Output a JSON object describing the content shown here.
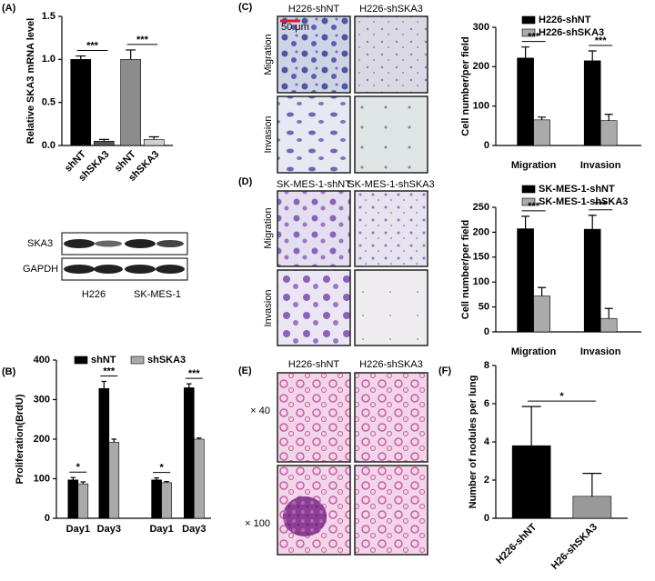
{
  "panel_labels": [
    "(A)",
    "(B)",
    "(C)",
    "(D)",
    "(E)",
    "(F)"
  ],
  "chart_data": [
    {
      "type": "bar",
      "ylabel": "Relative SKA3 mRNA level",
      "categories": [
        "shNT",
        "shSKA3",
        "shNT",
        "shSKA3"
      ],
      "values": [
        1.0,
        0.05,
        1.0,
        0.07
      ],
      "errors": [
        0.04,
        0.02,
        0.11,
        0.03
      ],
      "colors": [
        "#000000",
        "#555555",
        "#8c8c8c",
        "#d0d0d0"
      ],
      "ylim": [
        0,
        1.5
      ],
      "yticks": [
        {
          "value": 0,
          "label": "0.0"
        },
        0.5,
        {
          "value": 1,
          "label": "1.0"
        },
        1.5
      ],
      "annotations": [
        "***",
        "***"
      ]
    },
    {
      "type": "grouped-bar",
      "ylabel": "Proliferation(BrdU)",
      "categories": [
        "Day1",
        "Day3",
        "Day1",
        "Day3"
      ],
      "series": [
        {
          "name": "shNT",
          "color": "#000000",
          "values": [
            97,
            328,
            97,
            330
          ],
          "errors": [
            6,
            18,
            5,
            10
          ]
        },
        {
          "name": "shSKA3",
          "color": "#aaaaaa",
          "values": [
            87,
            192,
            90,
            200
          ],
          "errors": [
            5,
            8,
            3,
            3
          ]
        }
      ],
      "ylim": [
        0,
        400
      ],
      "yticks": [
        0,
        100,
        200,
        300,
        400
      ],
      "legend": "top",
      "annotations": [
        "*",
        "***",
        "*",
        "***"
      ]
    },
    {
      "type": "grouped-bar",
      "ylabel": "Cell number/per field",
      "categories": [
        "Migration",
        "Invasion"
      ],
      "series": [
        {
          "name": "H226-shNT",
          "color": "#000000",
          "values": [
            222,
            215
          ],
          "errors": [
            28,
            25
          ]
        },
        {
          "name": "H226-shSKA3",
          "color": "#aaaaaa",
          "values": [
            65,
            63
          ],
          "errors": [
            7,
            16
          ]
        }
      ],
      "ylim": [
        0,
        300
      ],
      "yticks": [
        0,
        100,
        200,
        300
      ],
      "legend": "top-right",
      "annotations": [
        "***",
        "***"
      ]
    },
    {
      "type": "grouped-bar",
      "ylabel": "Cell number/per field",
      "categories": [
        "Migration",
        "Invasion"
      ],
      "series": [
        {
          "name": "SK-MES-1-shNT",
          "color": "#000000",
          "values": [
            207,
            206
          ],
          "errors": [
            25,
            28
          ]
        },
        {
          "name": "SK-MES-1-shSKA3",
          "color": "#aaaaaa",
          "values": [
            72,
            27
          ],
          "errors": [
            17,
            20
          ]
        }
      ],
      "ylim": [
        0,
        250
      ],
      "yticks": [
        0,
        50,
        100,
        150,
        200,
        250
      ],
      "legend": "top-right",
      "annotations": [
        "***",
        "***"
      ]
    },
    {
      "type": "bar",
      "ylabel": "Number of nodules per lung",
      "categories": [
        "H226-shNT",
        "H26-shSKA3"
      ],
      "values": [
        3.8,
        1.15
      ],
      "errors": [
        2.05,
        1.2
      ],
      "colors": [
        "#000000",
        "#999999"
      ],
      "ylim": [
        0,
        8
      ],
      "yticks": [
        0,
        2,
        4,
        6,
        8
      ],
      "annotations": [
        "*"
      ]
    }
  ],
  "western_blot": {
    "rows": [
      "SKA3",
      "GAPDH"
    ],
    "groups": [
      "H226",
      "SK-MES-1"
    ]
  },
  "micrographs": [
    {
      "columns": [
        "H226-shNT",
        "H226-shSKA3"
      ],
      "rows": [
        "Migration",
        "Invasion"
      ],
      "scale_bar": "50 μm"
    },
    {
      "columns": [
        "SK-MES-1-shNT",
        "SK-MES-1-shSKA3"
      ],
      "rows": [
        "Migration",
        "Invasion"
      ]
    },
    {
      "columns": [
        "H226-shNT",
        "H226-shSKA3"
      ],
      "rows": [
        "× 40",
        "× 100"
      ]
    }
  ]
}
